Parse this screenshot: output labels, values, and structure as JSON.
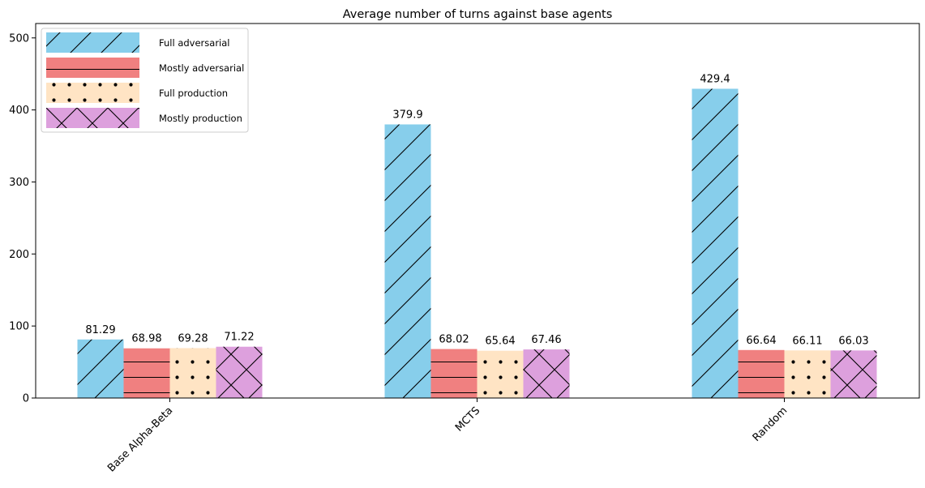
{
  "chart_data": {
    "type": "bar",
    "title": "Average number of turns against base agents",
    "xlabel": "",
    "ylabel": "",
    "categories": [
      "Base Alpha-Beta",
      "MCTS",
      "Random"
    ],
    "ylim": [
      0,
      520
    ],
    "yticks": [
      0,
      100,
      200,
      300,
      400,
      500
    ],
    "grid": false,
    "legend_position": "top-left",
    "series": [
      {
        "name": "Full adversarial",
        "values": [
          81.29,
          379.9,
          429.4
        ],
        "value_labels": [
          "81.29",
          "379.9",
          "429.4"
        ],
        "color": "#87ceeb",
        "hatch": "diagonal"
      },
      {
        "name": "Mostly adversarial",
        "values": [
          68.98,
          68.02,
          66.64
        ],
        "value_labels": [
          "68.98",
          "68.02",
          "66.64"
        ],
        "color": "#f08080",
        "hatch": "horizontal"
      },
      {
        "name": "Full production",
        "values": [
          69.28,
          65.64,
          66.11
        ],
        "value_labels": [
          "69.28",
          "65.64",
          "66.11"
        ],
        "color": "#ffe4c4",
        "hatch": "dots"
      },
      {
        "name": "Mostly production",
        "values": [
          71.22,
          67.46,
          66.03
        ],
        "value_labels": [
          "71.22",
          "67.46",
          "66.03"
        ],
        "color": "#dda0dd",
        "hatch": "cross"
      }
    ]
  }
}
